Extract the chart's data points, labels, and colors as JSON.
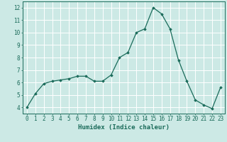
{
  "x": [
    0,
    1,
    2,
    3,
    4,
    5,
    6,
    7,
    8,
    9,
    10,
    11,
    12,
    13,
    14,
    15,
    16,
    17,
    18,
    19,
    20,
    21,
    22,
    23
  ],
  "y": [
    4.0,
    5.1,
    5.9,
    6.1,
    6.2,
    6.3,
    6.5,
    6.5,
    6.1,
    6.1,
    6.6,
    8.0,
    8.4,
    10.0,
    10.3,
    12.0,
    11.5,
    10.3,
    7.8,
    6.1,
    4.6,
    4.2,
    3.9,
    5.6
  ],
  "line_color": "#1a6b5a",
  "marker": "D",
  "marker_size": 1.8,
  "bg_color": "#cce9e5",
  "grid_color": "#ffffff",
  "xlabel": "Humidex (Indice chaleur)",
  "yticks": [
    4,
    5,
    6,
    7,
    8,
    9,
    10,
    11,
    12
  ],
  "xlim": [
    -0.5,
    23.5
  ],
  "ylim": [
    3.5,
    12.5
  ],
  "tick_color": "#1a6b5a",
  "tick_fontsize": 5.5,
  "xlabel_fontsize": 6.5,
  "linewidth": 0.9
}
